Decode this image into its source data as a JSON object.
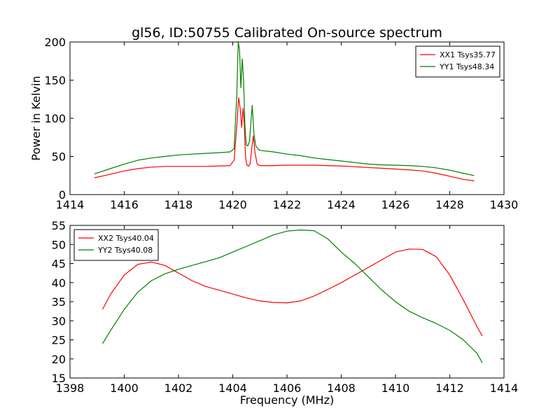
{
  "title": "gl56, ID:50755 Calibrated On-source spectrum",
  "chart_data": [
    {
      "type": "line",
      "title": "gl56, ID:50755 Calibrated On-source spectrum",
      "xlabel": "",
      "ylabel": "Power in Kelvin",
      "xlim": [
        1414,
        1430
      ],
      "ylim": [
        0,
        200
      ],
      "xticks": [
        1414,
        1416,
        1418,
        1420,
        1422,
        1424,
        1426,
        1428,
        1430
      ],
      "yticks": [
        0,
        50,
        100,
        150,
        200
      ],
      "grid": false,
      "legend_position": "top-right",
      "series": [
        {
          "name": "XX1 Tsys35.77",
          "color": "#ff0000",
          "x": [
            1414.9,
            1415.4,
            1416.0,
            1416.5,
            1417.0,
            1417.5,
            1418.0,
            1418.5,
            1419.0,
            1419.5,
            1419.9,
            1420.05,
            1420.15,
            1420.22,
            1420.28,
            1420.33,
            1420.38,
            1420.42,
            1420.47,
            1420.52,
            1420.58,
            1420.64,
            1420.7,
            1420.76,
            1420.82,
            1420.9,
            1421.0,
            1421.5,
            1422.0,
            1422.5,
            1423.0,
            1423.5,
            1424.0,
            1424.5,
            1425.0,
            1425.5,
            1426.0,
            1426.5,
            1427.0,
            1427.5,
            1428.0,
            1428.5,
            1428.9
          ],
          "values": [
            22,
            26,
            31,
            34,
            36,
            37,
            37,
            37,
            37,
            37.5,
            38,
            45,
            90,
            127,
            112,
            88,
            113,
            95,
            50,
            39,
            37,
            40,
            60,
            77,
            55,
            40,
            38,
            38,
            38.5,
            38.5,
            38.5,
            38,
            37.5,
            36.5,
            35.5,
            34.5,
            33.5,
            32.5,
            31,
            28,
            24,
            20,
            18
          ]
        },
        {
          "name": "YY1 Tsys48.34",
          "color": "#007f00",
          "x": [
            1414.9,
            1415.4,
            1416.0,
            1416.5,
            1417.0,
            1417.5,
            1418.0,
            1418.5,
            1419.0,
            1419.5,
            1419.9,
            1420.05,
            1420.15,
            1420.2,
            1420.25,
            1420.3,
            1420.35,
            1420.4,
            1420.45,
            1420.5,
            1420.56,
            1420.62,
            1420.68,
            1420.72,
            1420.78,
            1420.85,
            1420.95,
            1421.0,
            1421.5,
            1422.0,
            1422.5,
            1423.0,
            1423.5,
            1424.0,
            1424.5,
            1425.0,
            1425.5,
            1426.0,
            1426.5,
            1427.0,
            1427.5,
            1428.0,
            1428.5,
            1428.9
          ],
          "values": [
            27,
            33,
            40,
            45,
            48,
            50,
            52,
            53,
            54,
            55,
            56,
            60,
            130,
            200,
            190,
            140,
            178,
            150,
            90,
            65,
            64,
            70,
            100,
            117,
            80,
            64,
            59,
            58,
            56,
            53,
            51,
            48,
            46,
            44,
            42,
            40,
            39,
            38.5,
            38,
            37,
            35,
            32,
            28,
            25
          ]
        }
      ]
    },
    {
      "type": "line",
      "title": "",
      "xlabel": "Frequency (MHz)",
      "ylabel": "",
      "xlim": [
        1398,
        1414
      ],
      "ylim": [
        15,
        55
      ],
      "xticks": [
        1398,
        1400,
        1402,
        1404,
        1406,
        1408,
        1410,
        1412,
        1414
      ],
      "yticks": [
        15,
        20,
        25,
        30,
        35,
        40,
        45,
        50,
        55
      ],
      "grid": false,
      "legend_position": "top-left",
      "series": [
        {
          "name": "XX2 Tsys40.04",
          "color": "#ff0000",
          "x": [
            1399.2,
            1399.5,
            1400.0,
            1400.5,
            1401.0,
            1401.5,
            1402.0,
            1402.5,
            1403.0,
            1403.5,
            1404.0,
            1404.5,
            1405.0,
            1405.5,
            1406.0,
            1406.5,
            1407.0,
            1407.5,
            1408.0,
            1408.5,
            1409.0,
            1409.5,
            1410.0,
            1410.5,
            1411.0,
            1411.5,
            1412.0,
            1412.5,
            1413.0,
            1413.2
          ],
          "values": [
            33,
            37,
            42,
            44.8,
            45.4,
            44.5,
            42.5,
            40.5,
            39,
            38,
            37,
            36,
            35.2,
            34.8,
            34.7,
            35.2,
            36.5,
            38.2,
            40,
            42,
            44,
            46,
            48,
            48.8,
            48.7,
            46.8,
            42,
            35.5,
            28.5,
            26
          ]
        },
        {
          "name": "YY2 Tsys40.08",
          "color": "#007f00",
          "x": [
            1399.2,
            1399.5,
            1400.0,
            1400.5,
            1401.0,
            1401.5,
            1402.0,
            1402.5,
            1403.0,
            1403.5,
            1404.0,
            1404.5,
            1405.0,
            1405.5,
            1406.0,
            1406.5,
            1407.0,
            1407.5,
            1408.0,
            1408.5,
            1409.0,
            1409.5,
            1410.0,
            1410.5,
            1411.0,
            1411.5,
            1412.0,
            1412.5,
            1413.0,
            1413.2
          ],
          "values": [
            24,
            27.5,
            33,
            37.5,
            40.5,
            42.3,
            43.5,
            44.5,
            45.5,
            46.5,
            48,
            49.5,
            51,
            52.5,
            53.5,
            53.8,
            53.6,
            51.5,
            48,
            45,
            41.5,
            38,
            35,
            32.5,
            30.8,
            29.3,
            27.5,
            25,
            21.5,
            19
          ]
        }
      ]
    }
  ]
}
